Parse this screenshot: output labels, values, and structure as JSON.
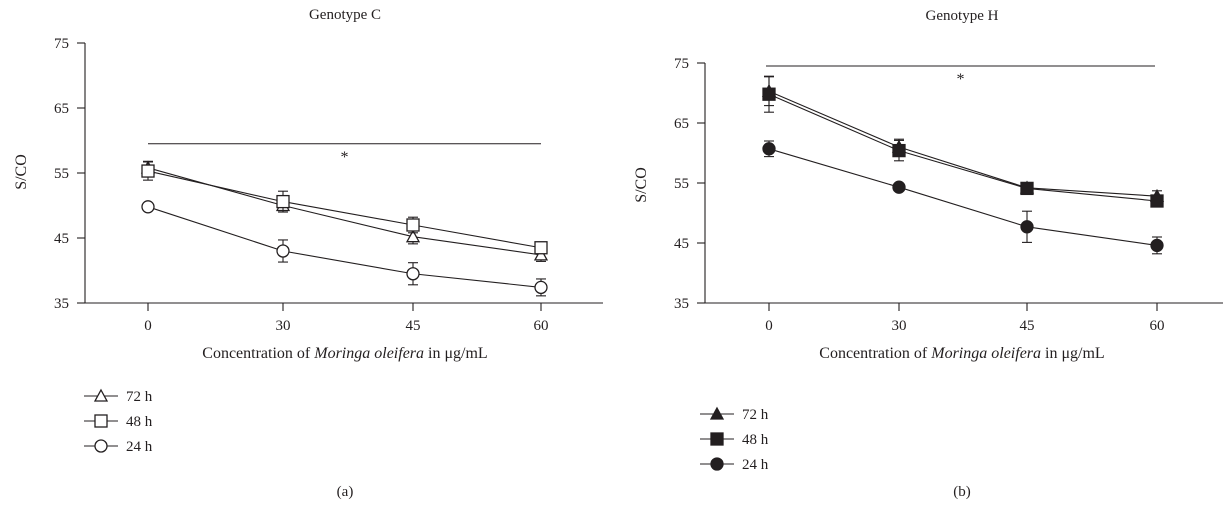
{
  "chart_data": [
    {
      "type": "line",
      "title": "Genotype C",
      "panel_label": "(a)",
      "xlabel_prefix": "Concentration of ",
      "xlabel_italic": "Moringa oleifera",
      "xlabel_suffix": " in μg/mL",
      "ylabel": "S/CO",
      "categories": [
        "0",
        "30",
        "45",
        "60"
      ],
      "yticks": [
        35,
        45,
        55,
        65,
        75
      ],
      "ylim": [
        35,
        75
      ],
      "significance": {
        "symbol": "*",
        "y": 59.5
      },
      "filled_markers": false,
      "series": [
        {
          "name": "72 h",
          "marker": "triangle",
          "values": [
            55.8,
            50.0,
            45.2,
            42.4
          ],
          "errors": [
            1.0,
            1.0,
            1.1,
            1.0
          ]
        },
        {
          "name": "48 h",
          "marker": "square",
          "values": [
            55.3,
            50.6,
            47.0,
            43.5
          ],
          "errors": [
            1.4,
            1.6,
            1.2,
            0.7
          ]
        },
        {
          "name": "24 h",
          "marker": "circle",
          "values": [
            49.8,
            43.0,
            39.5,
            37.4
          ],
          "errors": [
            0.5,
            1.7,
            1.7,
            1.3
          ]
        }
      ]
    },
    {
      "type": "line",
      "title": "Genotype H",
      "panel_label": "(b)",
      "xlabel_prefix": "Concentration of ",
      "xlabel_italic": "Moringa oleifera",
      "xlabel_suffix": " in μg/mL",
      "ylabel": "S/CO",
      "categories": [
        "0",
        "30",
        "45",
        "60"
      ],
      "yticks": [
        35,
        45,
        55,
        65,
        75
      ],
      "ylim": [
        35,
        75
      ],
      "significance": {
        "symbol": "*",
        "y": 74.5
      },
      "filled_markers": true,
      "series": [
        {
          "name": "72 h",
          "marker": "triangle",
          "values": [
            70.3,
            61.0,
            54.2,
            52.8
          ],
          "errors": [
            2.4,
            1.3,
            0.8,
            0.9
          ]
        },
        {
          "name": "48 h",
          "marker": "square",
          "values": [
            69.8,
            60.4,
            54.1,
            52.0
          ],
          "errors": [
            3.0,
            1.7,
            0.8,
            0.7
          ]
        },
        {
          "name": "24 h",
          "marker": "circle",
          "values": [
            60.7,
            54.3,
            47.7,
            44.6
          ],
          "errors": [
            1.3,
            0.6,
            2.6,
            1.4
          ]
        }
      ]
    }
  ]
}
